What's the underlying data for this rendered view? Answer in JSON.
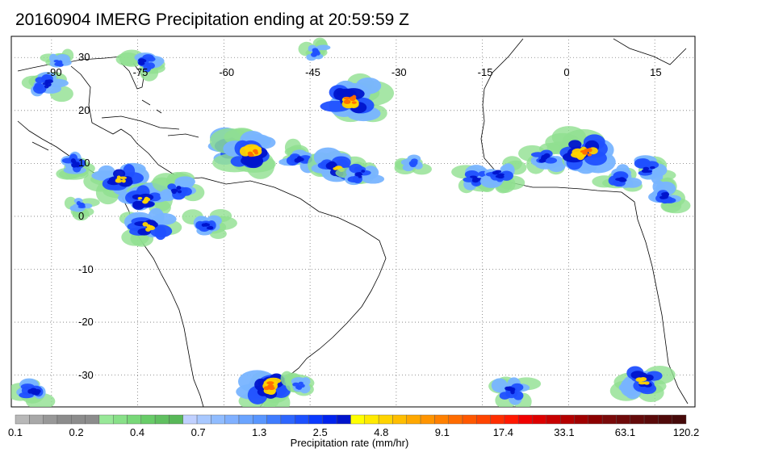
{
  "title": "20160904 IMERG Precipitation ending at 20:59:59 Z",
  "map": {
    "lon_range": [
      -97,
      22
    ],
    "lat_range": [
      -36,
      34
    ],
    "lon_ticks": [
      -90,
      -75,
      -60,
      -45,
      -30,
      -15,
      0,
      15
    ],
    "lat_ticks": [
      30,
      20,
      10,
      0,
      -10,
      -20,
      -30
    ],
    "lon_tick_labels": [
      "-90",
      "-75",
      "-60",
      "-45",
      "-30",
      "-15",
      "0",
      "15"
    ],
    "lat_tick_labels": [
      "30",
      "20",
      "10",
      "0",
      "-10",
      "-20",
      "-30"
    ],
    "gridlines": true,
    "land_color": "#ffffff",
    "coast_color": "#000000",
    "precip_regions": [
      {
        "lon": -58,
        "lat": 13,
        "intensity": 4
      },
      {
        "lon": -55,
        "lat": 12,
        "intensity": 5
      },
      {
        "lon": -47,
        "lat": 11,
        "intensity": 3
      },
      {
        "lon": -40,
        "lat": 9,
        "intensity": 4
      },
      {
        "lon": -36,
        "lat": 8,
        "intensity": 3
      },
      {
        "lon": -38,
        "lat": 22,
        "intensity": 5
      },
      {
        "lon": -44,
        "lat": 31,
        "intensity": 2
      },
      {
        "lon": -74,
        "lat": 29,
        "intensity": 3
      },
      {
        "lon": -86,
        "lat": 10,
        "intensity": 3
      },
      {
        "lon": -78,
        "lat": 7,
        "intensity": 4
      },
      {
        "lon": -74,
        "lat": 3,
        "intensity": 4
      },
      {
        "lon": -68,
        "lat": 5,
        "intensity": 3
      },
      {
        "lon": -73,
        "lat": -2,
        "intensity": 4
      },
      {
        "lon": -63,
        "lat": -2,
        "intensity": 3
      },
      {
        "lon": -91,
        "lat": 25,
        "intensity": 3
      },
      {
        "lon": -89,
        "lat": 29,
        "intensity": 2
      },
      {
        "lon": -16,
        "lat": 7,
        "intensity": 3
      },
      {
        "lon": -12,
        "lat": 8,
        "intensity": 3
      },
      {
        "lon": -4,
        "lat": 11,
        "intensity": 3
      },
      {
        "lon": 3,
        "lat": 12,
        "intensity": 5
      },
      {
        "lon": 9,
        "lat": 7,
        "intensity": 3
      },
      {
        "lon": 14,
        "lat": 9,
        "intensity": 3
      },
      {
        "lon": 17,
        "lat": 4,
        "intensity": 3
      },
      {
        "lon": -52,
        "lat": -32,
        "intensity": 5
      },
      {
        "lon": -47,
        "lat": -32,
        "intensity": 2
      },
      {
        "lon": -10,
        "lat": -33,
        "intensity": 3
      },
      {
        "lon": 13,
        "lat": -31,
        "intensity": 4
      },
      {
        "lon": -93,
        "lat": -33,
        "intensity": 3
      },
      {
        "lon": -85,
        "lat": 2,
        "intensity": 2
      },
      {
        "lon": -27,
        "lat": 10,
        "intensity": 2
      }
    ]
  },
  "colorbar": {
    "colors": [
      "#b8b8b8",
      "#a8a8a8",
      "#989898",
      "#8c8c8c",
      "#8c8c8c",
      "#8c8c8c",
      "#98e898",
      "#88e088",
      "#78d878",
      "#68cc68",
      "#60c060",
      "#58b858",
      "#c0d0ff",
      "#a8c8ff",
      "#90bcff",
      "#80b0ff",
      "#6aa4ff",
      "#5896ff",
      "#3f7cff",
      "#2d66ff",
      "#1c50ff",
      "#0a3aff",
      "#0022ee",
      "#0014cc",
      "#ffff00",
      "#ffea00",
      "#ffd400",
      "#ffbe00",
      "#ffa800",
      "#ff9400",
      "#ff8000",
      "#ff6c00",
      "#ff5800",
      "#ff4400",
      "#ff2e00",
      "#ff1800",
      "#f00000",
      "#dd0000",
      "#c80000",
      "#b40000",
      "#a00000",
      "#8c0000",
      "#7a0a0a",
      "#6e0a0a",
      "#640a0a",
      "#5a0a0a",
      "#500a0a",
      "#460a0a"
    ],
    "tick_labels": [
      "0.1",
      "0.2",
      "0.4",
      "0.7",
      "1.3",
      "2.5",
      "4.8",
      "9.1",
      "17.4",
      "33.1",
      "63.1",
      "120.2"
    ],
    "label": "Precipitation rate (mm/hr)"
  }
}
